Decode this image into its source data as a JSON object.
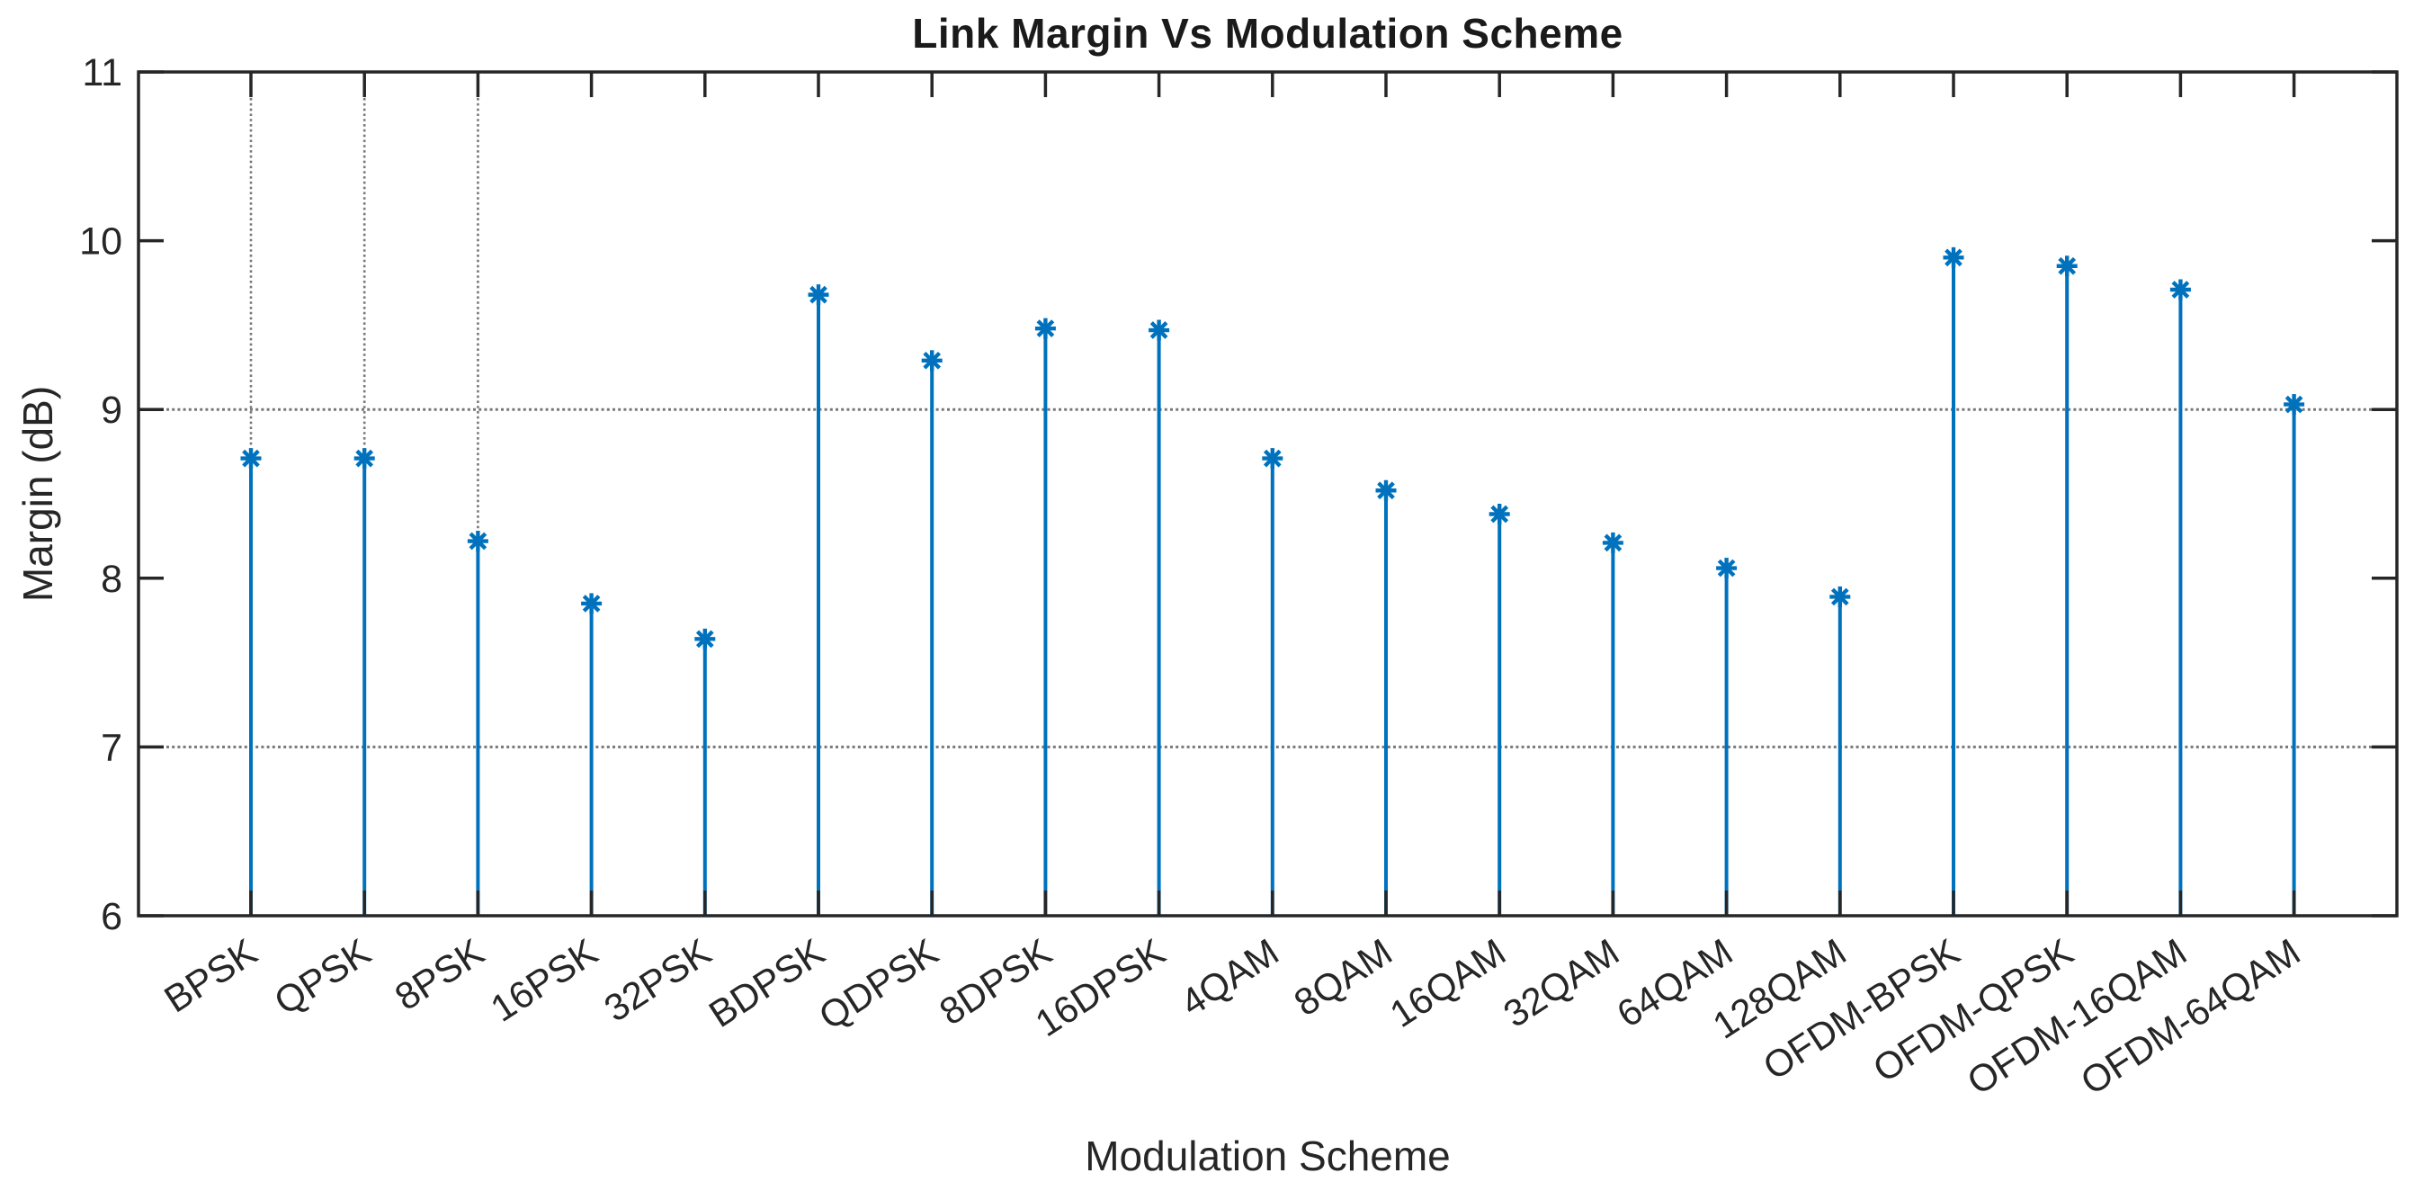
{
  "figure": {
    "title": "Link Margin Vs Modulation Scheme",
    "xlabel": "Modulation Scheme",
    "ylabel": "Margin (dB)"
  },
  "chart_data": {
    "type": "stem",
    "title": "Link Margin Vs Modulation Scheme",
    "xlabel": "Modulation Scheme",
    "ylabel": "Margin (dB)",
    "categories": [
      "BPSK",
      "QPSK",
      "8PSK",
      "16PSK",
      "32PSK",
      "BDPSK",
      "QDPSK",
      "8DPSK",
      "16DPSK",
      "4QAM",
      "8QAM",
      "16QAM",
      "32QAM",
      "64QAM",
      "128QAM",
      "OFDM-BPSK",
      "OFDM-QPSK",
      "OFDM-16QAM",
      "OFDM-64QAM"
    ],
    "values": [
      8.71,
      8.71,
      8.22,
      7.85,
      7.64,
      9.68,
      9.29,
      9.48,
      9.47,
      8.71,
      8.52,
      8.38,
      8.21,
      8.06,
      7.89,
      9.9,
      9.85,
      9.71,
      9.03
    ],
    "ylim": [
      6,
      11
    ],
    "yticks": [
      6,
      7,
      8,
      9,
      10,
      11
    ],
    "baseline": 6,
    "marker": "asterisk-8-spoke",
    "x_tick_label_rotation_deg": -33,
    "grid": {
      "horizontal_dotted_at_values": [
        9,
        7
      ],
      "vertical_dotted_at_categories": [
        "BPSK",
        "QPSK",
        "8PSK"
      ]
    },
    "legend": "none",
    "colors": {
      "stem": "#0072BD",
      "axis": "#262626",
      "tick_label": "#262626",
      "grid": "#787878",
      "title": "#1a1a1a",
      "background": "#ffffff"
    }
  }
}
